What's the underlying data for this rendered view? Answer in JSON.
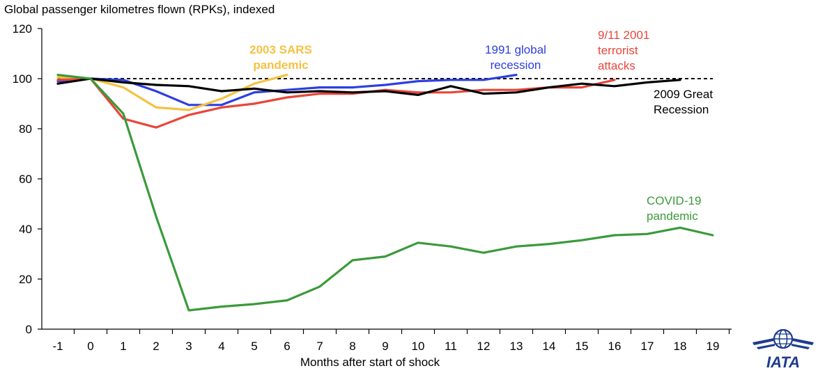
{
  "chart_data": {
    "type": "line",
    "title": "Global passenger kilometres flown (RPKs), indexed",
    "xlabel": "Months after start of shock",
    "ylabel": "",
    "categories": [
      -1,
      0,
      1,
      2,
      3,
      4,
      5,
      6,
      7,
      8,
      9,
      10,
      11,
      12,
      13,
      14,
      15,
      16,
      17,
      18,
      19
    ],
    "ylim": [
      0,
      120
    ],
    "yticks": [
      0,
      20,
      40,
      60,
      80,
      100,
      120
    ],
    "reference_line": {
      "value": 100,
      "style": "dashed",
      "color": "#000000"
    },
    "series": [
      {
        "name": "2003 SARS pandemic",
        "label_lines": [
          "2003 SARS",
          "pandemic"
        ],
        "color": "#f6c142",
        "bold": true,
        "x": [
          -1,
          0,
          1,
          2,
          3,
          4,
          5,
          6
        ],
        "values": [
          100.5,
          100,
          96.5,
          88.5,
          87.5,
          92,
          98,
          101.5
        ]
      },
      {
        "name": "1991 global recession",
        "label_lines": [
          "1991 global",
          "recession"
        ],
        "color": "#2d3ee0",
        "bold": false,
        "x": [
          -1,
          0,
          1,
          2,
          3,
          4,
          5,
          6,
          7,
          8,
          9,
          10,
          11,
          12,
          13
        ],
        "values": [
          99,
          100,
          99.5,
          95,
          89.5,
          89.5,
          94.5,
          95.5,
          96.5,
          96.5,
          97.5,
          99,
          99.5,
          99.5,
          101.5
        ]
      },
      {
        "name": "9/11 2001 terrorist attacks",
        "label_lines": [
          "9/11 2001",
          "terrorist",
          "attacks"
        ],
        "color": "#e8463a",
        "bold": false,
        "x": [
          -1,
          0,
          1,
          2,
          3,
          4,
          5,
          6,
          7,
          8,
          9,
          10,
          11,
          12,
          13,
          14,
          15,
          16
        ],
        "values": [
          99.5,
          100,
          84,
          80.5,
          85.5,
          88.5,
          90,
          92.5,
          94,
          94,
          95.5,
          94.5,
          94.5,
          95.5,
          95.5,
          96.5,
          96.5,
          99.5
        ]
      },
      {
        "name": "2009 Great Recession",
        "label_lines": [
          "2009 Great",
          "Recession"
        ],
        "color": "#000000",
        "bold": false,
        "x": [
          -1,
          0,
          1,
          2,
          3,
          4,
          5,
          6,
          7,
          8,
          9,
          10,
          11,
          12,
          13,
          14,
          15,
          16,
          17,
          18
        ],
        "values": [
          98,
          100,
          98.5,
          97.5,
          97,
          95,
          96,
          94.5,
          95,
          94.5,
          95,
          93.5,
          97,
          94,
          94.5,
          96.5,
          98,
          97,
          98.5,
          99.5
        ]
      },
      {
        "name": "COVID-19 pandemic",
        "label_lines": [
          "COVID-19",
          "pandemic"
        ],
        "color": "#3a9a3a",
        "bold": false,
        "x": [
          -1,
          0,
          1,
          2,
          3,
          4,
          5,
          6,
          7,
          8,
          9,
          10,
          11,
          12,
          13,
          14,
          15,
          16,
          17,
          18,
          19
        ],
        "values": [
          101.5,
          100,
          86,
          45,
          7.5,
          9,
          10,
          11.5,
          17,
          27.5,
          29,
          34.5,
          33,
          30.5,
          33,
          34,
          35.5,
          37.5,
          38,
          40.5,
          37.5
        ]
      }
    ]
  },
  "logo": {
    "text": "IATA",
    "color": "#1d3b8f"
  }
}
